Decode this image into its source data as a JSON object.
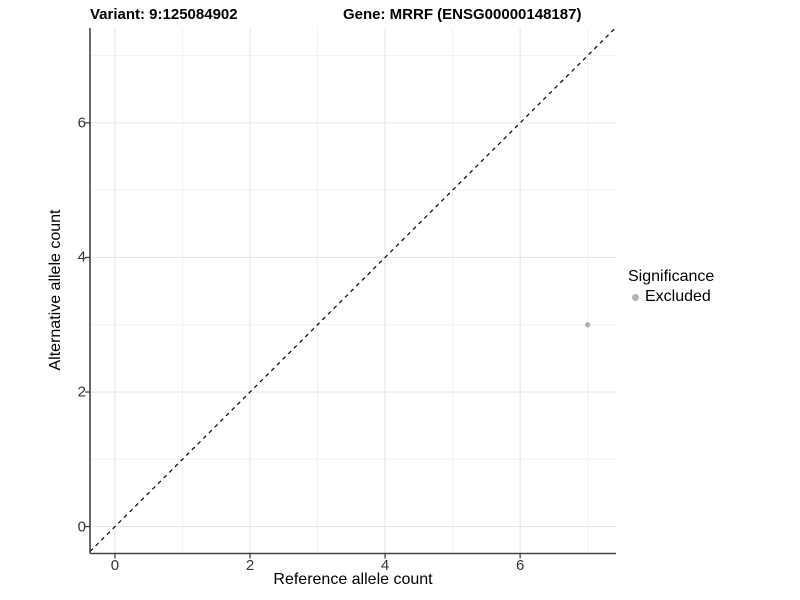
{
  "titles": {
    "variant": "Variant: 9:125084902",
    "gene": "Gene: MRRF (ENSG00000148187)"
  },
  "legend": {
    "title": "Significance",
    "items": [
      {
        "label": "Excluded",
        "color": "#b3b3b3"
      }
    ]
  },
  "chart_data": {
    "type": "scatter",
    "title": "",
    "xlabel": "Reference allele count",
    "ylabel": "Alternative allele count",
    "xlim": [
      -0.37,
      7.42
    ],
    "ylim": [
      -0.4,
      7.41
    ],
    "x_major_ticks": [
      0,
      2,
      4,
      6
    ],
    "y_major_ticks": [
      0,
      2,
      4,
      6
    ],
    "x_minor_ticks": [
      1,
      3,
      5,
      7
    ],
    "y_minor_ticks": [
      1,
      3,
      5,
      7
    ],
    "grid": true,
    "legend_position": "right",
    "series": [
      {
        "name": "Excluded",
        "color": "#b3b3b3",
        "points": [
          {
            "x": 7,
            "y": 3
          }
        ]
      }
    ],
    "reference_line": {
      "kind": "identity",
      "style": "dashed",
      "color": "#000000"
    },
    "style": {
      "grid_major_color": "#e6e6e6",
      "grid_minor_color": "#f1f1f1",
      "axis_line_color": "#444444",
      "tick_color": "#333333",
      "point_radius": 2.6
    }
  }
}
